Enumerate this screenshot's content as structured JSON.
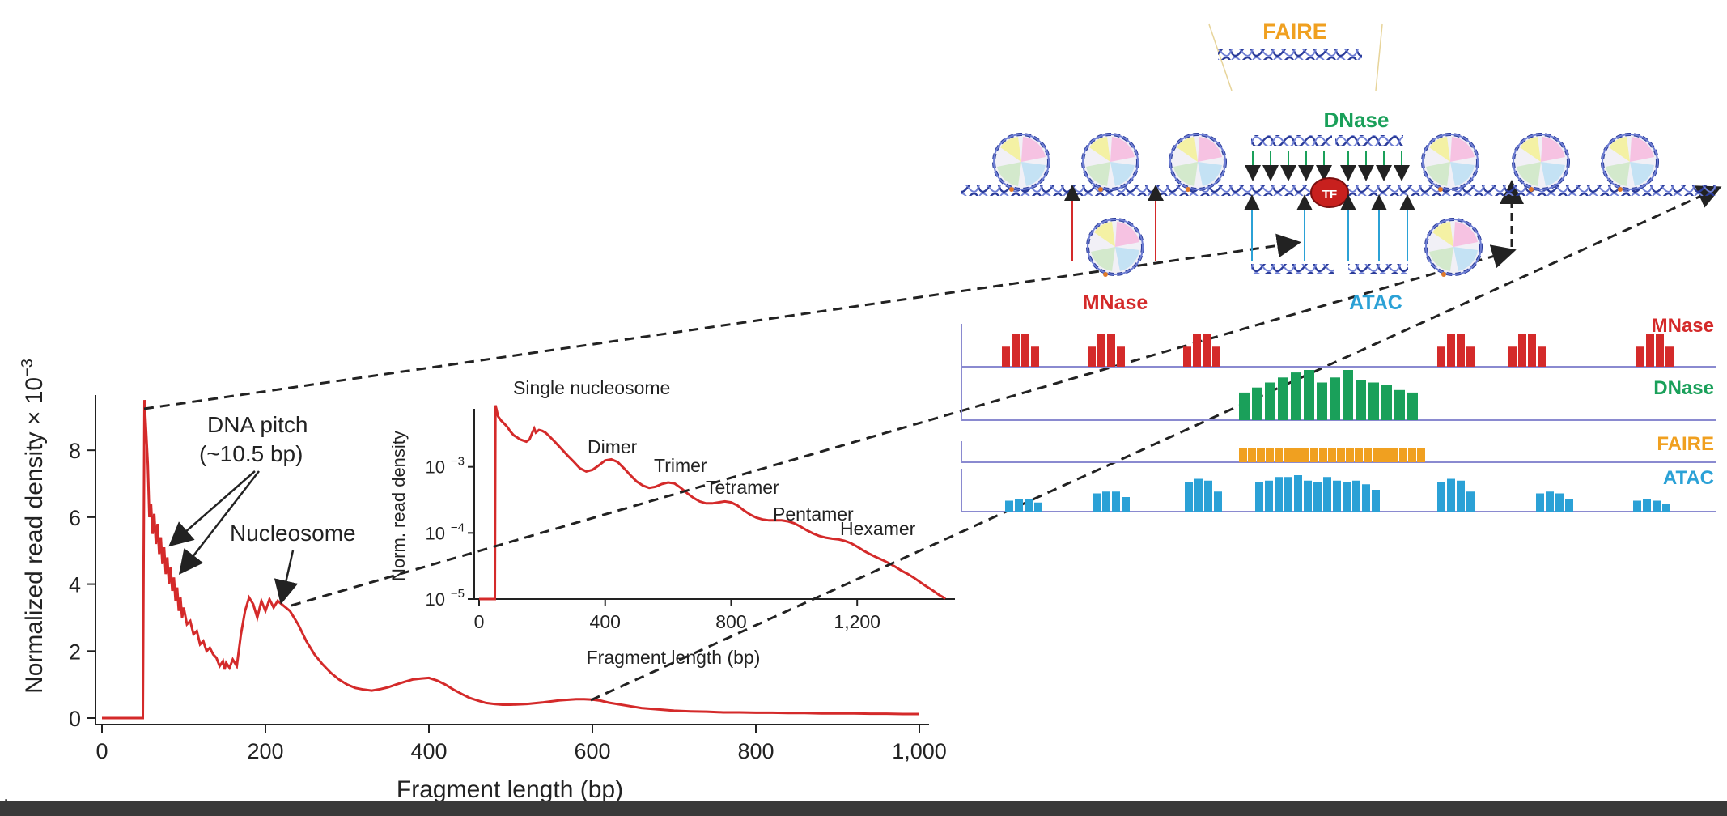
{
  "colors": {
    "curve": "#d42a2a",
    "mnase": "#d42a2a",
    "dnase": "#1aa05a",
    "faire": "#f0a020",
    "atac": "#2ba1d6",
    "dna": "#2b3c9a",
    "tf": "#c8201e",
    "track_line": "#8a8ad0"
  },
  "chart_data": [
    {
      "type": "line",
      "name": "main",
      "xlabel": "Fragment length (bp)",
      "ylabel": "Normalized read density × 10",
      "ylabel_exp": "−3",
      "xlim": [
        0,
        1000
      ],
      "ylim": [
        0,
        9.6
      ],
      "xticks": [
        0,
        200,
        400,
        600,
        800,
        1000
      ],
      "xtick_labels": [
        "0",
        "200",
        "400",
        "600",
        "800",
        "1,000"
      ],
      "yticks": [
        0,
        2,
        4,
        6,
        8
      ],
      "ytick_labels": [
        "0",
        "2",
        "4",
        "6",
        "8"
      ],
      "series": [
        {
          "x": [
            0,
            48,
            50,
            52,
            54,
            56,
            58,
            60,
            62,
            64,
            66,
            68,
            70,
            72,
            74,
            76,
            78,
            80,
            82,
            84,
            86,
            88,
            90,
            92,
            94,
            96,
            98,
            100,
            104,
            108,
            112,
            116,
            120,
            124,
            128,
            132,
            136,
            140,
            144,
            148,
            150,
            152,
            156,
            160,
            165,
            170,
            175,
            180,
            185,
            190,
            195,
            200,
            205,
            210,
            215,
            220,
            230,
            240,
            250,
            260,
            270,
            280,
            290,
            300,
            310,
            320,
            330,
            340,
            350,
            360,
            370,
            380,
            390,
            400,
            410,
            420,
            430,
            440,
            450,
            460,
            470,
            480,
            490,
            500,
            520,
            540,
            560,
            580,
            590,
            600,
            610,
            620,
            640,
            660,
            680,
            700,
            720,
            740,
            760,
            780,
            800,
            820,
            840,
            860,
            880,
            900,
            920,
            940,
            960,
            980,
            1000
          ],
          "y": [
            0,
            0,
            0,
            9.5,
            8.6,
            7.6,
            6.0,
            6.4,
            5.5,
            6.1,
            5.2,
            5.8,
            4.9,
            5.4,
            4.6,
            5.1,
            4.3,
            4.8,
            4.0,
            4.5,
            3.8,
            4.2,
            3.5,
            3.9,
            3.2,
            3.6,
            3.0,
            3.3,
            2.8,
            2.9,
            2.5,
            2.6,
            2.2,
            2.3,
            2.0,
            2.1,
            1.9,
            1.8,
            1.55,
            1.7,
            1.45,
            1.65,
            1.5,
            1.75,
            1.55,
            2.5,
            3.2,
            3.6,
            3.4,
            3.0,
            3.5,
            3.2,
            3.55,
            3.3,
            3.5,
            3.4,
            3.2,
            2.8,
            2.3,
            1.9,
            1.6,
            1.35,
            1.15,
            1.0,
            0.9,
            0.85,
            0.82,
            0.86,
            0.92,
            1.0,
            1.08,
            1.15,
            1.18,
            1.2,
            1.12,
            1.0,
            0.85,
            0.72,
            0.6,
            0.52,
            0.45,
            0.42,
            0.4,
            0.4,
            0.42,
            0.47,
            0.53,
            0.56,
            0.56,
            0.55,
            0.52,
            0.46,
            0.38,
            0.3,
            0.26,
            0.22,
            0.2,
            0.19,
            0.17,
            0.17,
            0.16,
            0.16,
            0.15,
            0.15,
            0.14,
            0.14,
            0.14,
            0.13,
            0.13,
            0.12,
            0.12
          ]
        }
      ],
      "annotations": {
        "pitch_line1": "DNA pitch",
        "pitch_line2": "(~10.5 bp)",
        "nucleosome": "Nucleosome"
      }
    },
    {
      "type": "line",
      "name": "inset",
      "xlabel": "Fragment length (bp)",
      "ylabel": "Norm. read density",
      "yscale": "log",
      "xlim": [
        0,
        1500
      ],
      "ylim": [
        1e-05,
        0.01
      ],
      "xticks": [
        0,
        400,
        800,
        1200
      ],
      "xtick_labels": [
        "0",
        "400",
        "800",
        "1,200"
      ],
      "yticks": [
        1e-05,
        0.0001,
        0.001
      ],
      "ytick_base": "10",
      "ytick_exps": [
        "−5",
        "−4",
        "−3"
      ],
      "series": [
        {
          "x": [
            0,
            48,
            50,
            52,
            55,
            60,
            70,
            80,
            90,
            100,
            110,
            120,
            130,
            140,
            150,
            160,
            170,
            175,
            180,
            190,
            200,
            210,
            220,
            240,
            260,
            280,
            300,
            320,
            340,
            360,
            380,
            400,
            420,
            440,
            460,
            480,
            500,
            520,
            540,
            560,
            580,
            600,
            620,
            640,
            660,
            680,
            700,
            720,
            740,
            760,
            780,
            800,
            820,
            840,
            860,
            880,
            900,
            920,
            940,
            960,
            980,
            1000,
            1020,
            1040,
            1060,
            1080,
            1100,
            1120,
            1140,
            1160,
            1180,
            1200,
            1220,
            1240,
            1260,
            1280,
            1300,
            1320,
            1340,
            1360,
            1380,
            1400,
            1420,
            1440,
            1460,
            1480
          ],
          "y": [
            1e-05,
            1e-05,
            1e-05,
            0.0085,
            0.0075,
            0.0058,
            0.005,
            0.0045,
            0.004,
            0.0034,
            0.003,
            0.0028,
            0.0026,
            0.0025,
            0.0024,
            0.0026,
            0.0034,
            0.0038,
            0.0033,
            0.0036,
            0.0035,
            0.0033,
            0.003,
            0.0024,
            0.0019,
            0.0015,
            0.0012,
            0.00095,
            0.00085,
            0.0009,
            0.00105,
            0.00125,
            0.0013,
            0.00118,
            0.00095,
            0.00075,
            0.0006,
            0.00052,
            0.00048,
            0.0005,
            0.00055,
            0.00058,
            0.00056,
            0.00048,
            0.0004,
            0.00034,
            0.0003,
            0.00028,
            0.00028,
            0.00029,
            0.0003,
            0.00029,
            0.00026,
            0.00022,
            0.00019,
            0.00017,
            0.00016,
            0.000155,
            0.000155,
            0.000155,
            0.00015,
            0.00014,
            0.000125,
            0.00011,
            9.8e-05,
            9e-05,
            8.5e-05,
            8.2e-05,
            8e-05,
            7.6e-05,
            7e-05,
            6.2e-05,
            5.4e-05,
            4.8e-05,
            4.3e-05,
            3.9e-05,
            3.5e-05,
            3.1e-05,
            2.7e-05,
            2.4e-05,
            2.1e-05,
            1.8e-05,
            1.55e-05,
            1.35e-05,
            1.15e-05,
            1.02e-05
          ]
        }
      ],
      "annotations": [
        "Single nucleosome",
        "Dimer",
        "Trimer",
        "Tetramer",
        "Pentamer",
        "Hexamer"
      ]
    },
    {
      "type": "bar",
      "name": "assay-tracks",
      "tracks": [
        {
          "label": "MNase",
          "color_key": "mnase",
          "groups": [
            [
              0.55,
              0.9,
              0.9,
              0.55
            ],
            [
              0.55,
              0.9,
              0.9,
              0.55
            ],
            [
              0.55,
              0.9,
              0.9,
              0.55
            ],
            [
              0.55,
              0.9,
              0.9,
              0.55
            ],
            [
              0.55,
              0.9,
              0.9,
              0.55
            ],
            [
              0.55,
              0.9,
              0.9,
              0.55
            ]
          ]
        },
        {
          "label": "DNase",
          "color_key": "dnase",
          "groups": [
            [
              0.55,
              0.65,
              0.75,
              0.85,
              0.95,
              1.0,
              0.75,
              0.85,
              1.0,
              0.8,
              0.75,
              0.7,
              0.6,
              0.55
            ]
          ]
        },
        {
          "label": "FAIRE",
          "color_key": "faire",
          "groups": [
            [
              1,
              1,
              1,
              1,
              1,
              1,
              1,
              1,
              1,
              1,
              1,
              1,
              1,
              1,
              1,
              1,
              1,
              1,
              1,
              1,
              1
            ]
          ]
        },
        {
          "label": "ATAC",
          "color_key": "atac",
          "groups": [
            [
              0.3,
              0.35,
              0.35,
              0.25
            ],
            [
              0.5,
              0.55,
              0.55,
              0.4
            ],
            [
              0.8,
              0.9,
              0.85,
              0.55
            ],
            [
              0.8,
              0.85,
              0.95,
              0.95,
              1.0,
              0.85,
              0.8,
              0.95,
              0.85,
              0.8,
              0.85,
              0.75,
              0.6
            ],
            [
              0.8,
              0.9,
              0.85,
              0.55
            ],
            [
              0.5,
              0.55,
              0.5,
              0.35
            ],
            [
              0.3,
              0.35,
              0.3,
              0.2
            ]
          ]
        }
      ]
    }
  ],
  "diagram": {
    "faire_label": "FAIRE",
    "dnase_label": "DNase",
    "mnase_label": "MNase",
    "atac_label": "ATAC",
    "tf_label": "TF",
    "dna_glyph": "≈"
  },
  "stray_mark": "."
}
